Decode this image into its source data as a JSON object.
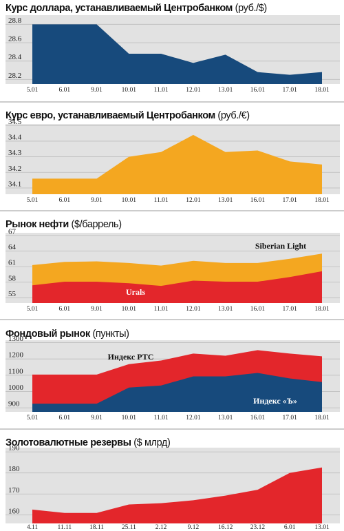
{
  "chart_data": [
    {
      "type": "area",
      "title": "Курс доллара, устанавливаемый Центробанком",
      "unit": "(руб./$)",
      "categories": [
        "5.01",
        "6.01",
        "9.01",
        "10.01",
        "11.01",
        "12.01",
        "13.01",
        "16.01",
        "17.01",
        "18.01"
      ],
      "values": [
        28.8,
        28.8,
        28.8,
        28.48,
        28.48,
        28.38,
        28.47,
        28.28,
        28.25,
        28.28
      ],
      "color": "#174a7c",
      "ylim": [
        28.15,
        28.9
      ],
      "yticks": [
        28.2,
        28.4,
        28.6,
        28.8
      ],
      "grid": true
    },
    {
      "type": "area",
      "title": "Курс евро, устанавливаемый Центробанком",
      "unit": "(руб./€)",
      "categories": [
        "5.01",
        "6.01",
        "9.01",
        "10.01",
        "11.01",
        "12.01",
        "13.01",
        "16.01",
        "17.01",
        "18.01"
      ],
      "values": [
        34.16,
        34.16,
        34.16,
        34.3,
        34.33,
        34.44,
        34.33,
        34.34,
        34.27,
        34.25
      ],
      "color": "#f4a720",
      "ylim": [
        34.06,
        34.51
      ],
      "yticks": [
        34.1,
        34.2,
        34.3,
        34.4,
        34.5
      ],
      "grid": true
    },
    {
      "type": "area",
      "title": "Рынок нефти",
      "unit": "($/баррель)",
      "categories": [
        "5.01",
        "6.01",
        "9.01",
        "10.01",
        "11.01",
        "12.01",
        "13.01",
        "16.01",
        "17.01",
        "18.01"
      ],
      "series": [
        {
          "name": "Siberian Light",
          "color": "#f4a720",
          "values": [
            61.3,
            61.9,
            62,
            61.7,
            61.2,
            62.1,
            61.7,
            61.7,
            62.5,
            63.5
          ]
        },
        {
          "name": "Urals",
          "color": "#e3262b",
          "values": [
            57.4,
            58.1,
            58.1,
            57.8,
            57.3,
            58.3,
            58.1,
            58.1,
            59,
            60.1
          ]
        }
      ],
      "ylim": [
        54,
        67.5
      ],
      "yticks": [
        55,
        58,
        61,
        64,
        67
      ],
      "grid": true
    },
    {
      "type": "area",
      "title": "Фондовый рынок",
      "unit": "(пункты)",
      "categories": [
        "5.01",
        "6.01",
        "9.01",
        "10.01",
        "11.01",
        "12.01",
        "13.01",
        "16.01",
        "17.01",
        "18.01"
      ],
      "series": [
        {
          "name": "Индекс РТС",
          "color": "#e3262b",
          "values": [
            1104,
            1104,
            1104,
            1168,
            1190,
            1233,
            1220,
            1254,
            1233,
            1216
          ]
        },
        {
          "name": "Индекс «Ъ»",
          "color": "#174a7c",
          "values": [
            925,
            925,
            925,
            1024,
            1037,
            1093,
            1093,
            1114,
            1080,
            1058
          ]
        }
      ],
      "ylim": [
        875,
        1315
      ],
      "yticks": [
        900,
        1000,
        1100,
        1200,
        1300
      ],
      "grid": true
    },
    {
      "type": "area",
      "title": "Золотовалютные резервы",
      "unit": "($ млрд)",
      "categories": [
        "4.11",
        "11.11",
        "18.11",
        "25.11",
        "2.12",
        "9.12",
        "16.12",
        "23.12",
        "6.01",
        "13.01"
      ],
      "values": [
        162.6,
        161,
        161,
        165,
        165.6,
        167,
        169.2,
        172,
        180,
        182.6
      ],
      "color": "#e3262b",
      "ylim": [
        156,
        192
      ],
      "yticks": [
        160,
        170,
        180,
        190
      ],
      "grid": true
    }
  ]
}
